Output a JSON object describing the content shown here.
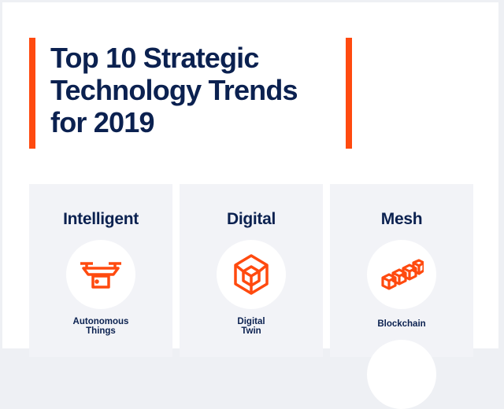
{
  "title": {
    "lines": [
      "Top 10 Strategic",
      "Technology Trends",
      "for 2019"
    ]
  },
  "colors": {
    "accent": "#ff4a0f",
    "navy": "#0b2150",
    "panel": "#f2f3f7"
  },
  "panels": [
    {
      "heading": "Intelligent",
      "icon": "drone-icon",
      "item_lines": [
        "Autonomous",
        "Things"
      ]
    },
    {
      "heading": "Digital",
      "icon": "cube-icon",
      "item_lines": [
        "Digital",
        "Twin"
      ]
    },
    {
      "heading": "Mesh",
      "icon": "blockchain-icon",
      "item_lines": [
        "Blockchain"
      ]
    }
  ]
}
